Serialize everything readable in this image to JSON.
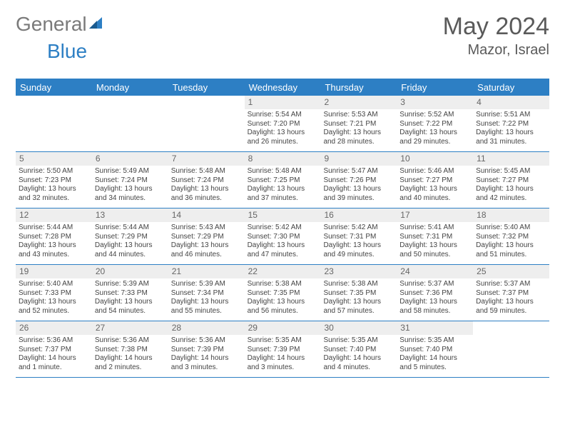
{
  "brand": {
    "part1": "General",
    "part2": "Blue"
  },
  "title": "May 2024",
  "location": "Mazor, Israel",
  "weekdays": [
    "Sunday",
    "Monday",
    "Tuesday",
    "Wednesday",
    "Thursday",
    "Friday",
    "Saturday"
  ],
  "colors": {
    "accent": "#2d7fc4",
    "daynum_bg": "#eeeeee",
    "text": "#444444",
    "header_text": "#5a5a5a"
  },
  "weeks": [
    [
      {
        "n": "",
        "sr": "",
        "ss": "",
        "dl": ""
      },
      {
        "n": "",
        "sr": "",
        "ss": "",
        "dl": ""
      },
      {
        "n": "",
        "sr": "",
        "ss": "",
        "dl": ""
      },
      {
        "n": "1",
        "sr": "5:54 AM",
        "ss": "7:20 PM",
        "dl": "13 hours and 26 minutes."
      },
      {
        "n": "2",
        "sr": "5:53 AM",
        "ss": "7:21 PM",
        "dl": "13 hours and 28 minutes."
      },
      {
        "n": "3",
        "sr": "5:52 AM",
        "ss": "7:22 PM",
        "dl": "13 hours and 29 minutes."
      },
      {
        "n": "4",
        "sr": "5:51 AM",
        "ss": "7:22 PM",
        "dl": "13 hours and 31 minutes."
      }
    ],
    [
      {
        "n": "5",
        "sr": "5:50 AM",
        "ss": "7:23 PM",
        "dl": "13 hours and 32 minutes."
      },
      {
        "n": "6",
        "sr": "5:49 AM",
        "ss": "7:24 PM",
        "dl": "13 hours and 34 minutes."
      },
      {
        "n": "7",
        "sr": "5:48 AM",
        "ss": "7:24 PM",
        "dl": "13 hours and 36 minutes."
      },
      {
        "n": "8",
        "sr": "5:48 AM",
        "ss": "7:25 PM",
        "dl": "13 hours and 37 minutes."
      },
      {
        "n": "9",
        "sr": "5:47 AM",
        "ss": "7:26 PM",
        "dl": "13 hours and 39 minutes."
      },
      {
        "n": "10",
        "sr": "5:46 AM",
        "ss": "7:27 PM",
        "dl": "13 hours and 40 minutes."
      },
      {
        "n": "11",
        "sr": "5:45 AM",
        "ss": "7:27 PM",
        "dl": "13 hours and 42 minutes."
      }
    ],
    [
      {
        "n": "12",
        "sr": "5:44 AM",
        "ss": "7:28 PM",
        "dl": "13 hours and 43 minutes."
      },
      {
        "n": "13",
        "sr": "5:44 AM",
        "ss": "7:29 PM",
        "dl": "13 hours and 44 minutes."
      },
      {
        "n": "14",
        "sr": "5:43 AM",
        "ss": "7:29 PM",
        "dl": "13 hours and 46 minutes."
      },
      {
        "n": "15",
        "sr": "5:42 AM",
        "ss": "7:30 PM",
        "dl": "13 hours and 47 minutes."
      },
      {
        "n": "16",
        "sr": "5:42 AM",
        "ss": "7:31 PM",
        "dl": "13 hours and 49 minutes."
      },
      {
        "n": "17",
        "sr": "5:41 AM",
        "ss": "7:31 PM",
        "dl": "13 hours and 50 minutes."
      },
      {
        "n": "18",
        "sr": "5:40 AM",
        "ss": "7:32 PM",
        "dl": "13 hours and 51 minutes."
      }
    ],
    [
      {
        "n": "19",
        "sr": "5:40 AM",
        "ss": "7:33 PM",
        "dl": "13 hours and 52 minutes."
      },
      {
        "n": "20",
        "sr": "5:39 AM",
        "ss": "7:33 PM",
        "dl": "13 hours and 54 minutes."
      },
      {
        "n": "21",
        "sr": "5:39 AM",
        "ss": "7:34 PM",
        "dl": "13 hours and 55 minutes."
      },
      {
        "n": "22",
        "sr": "5:38 AM",
        "ss": "7:35 PM",
        "dl": "13 hours and 56 minutes."
      },
      {
        "n": "23",
        "sr": "5:38 AM",
        "ss": "7:35 PM",
        "dl": "13 hours and 57 minutes."
      },
      {
        "n": "24",
        "sr": "5:37 AM",
        "ss": "7:36 PM",
        "dl": "13 hours and 58 minutes."
      },
      {
        "n": "25",
        "sr": "5:37 AM",
        "ss": "7:37 PM",
        "dl": "13 hours and 59 minutes."
      }
    ],
    [
      {
        "n": "26",
        "sr": "5:36 AM",
        "ss": "7:37 PM",
        "dl": "14 hours and 1 minute."
      },
      {
        "n": "27",
        "sr": "5:36 AM",
        "ss": "7:38 PM",
        "dl": "14 hours and 2 minutes."
      },
      {
        "n": "28",
        "sr": "5:36 AM",
        "ss": "7:39 PM",
        "dl": "14 hours and 3 minutes."
      },
      {
        "n": "29",
        "sr": "5:35 AM",
        "ss": "7:39 PM",
        "dl": "14 hours and 3 minutes."
      },
      {
        "n": "30",
        "sr": "5:35 AM",
        "ss": "7:40 PM",
        "dl": "14 hours and 4 minutes."
      },
      {
        "n": "31",
        "sr": "5:35 AM",
        "ss": "7:40 PM",
        "dl": "14 hours and 5 minutes."
      },
      {
        "n": "",
        "sr": "",
        "ss": "",
        "dl": ""
      }
    ]
  ],
  "labels": {
    "sunrise": "Sunrise:",
    "sunset": "Sunset:",
    "daylight": "Daylight:"
  }
}
